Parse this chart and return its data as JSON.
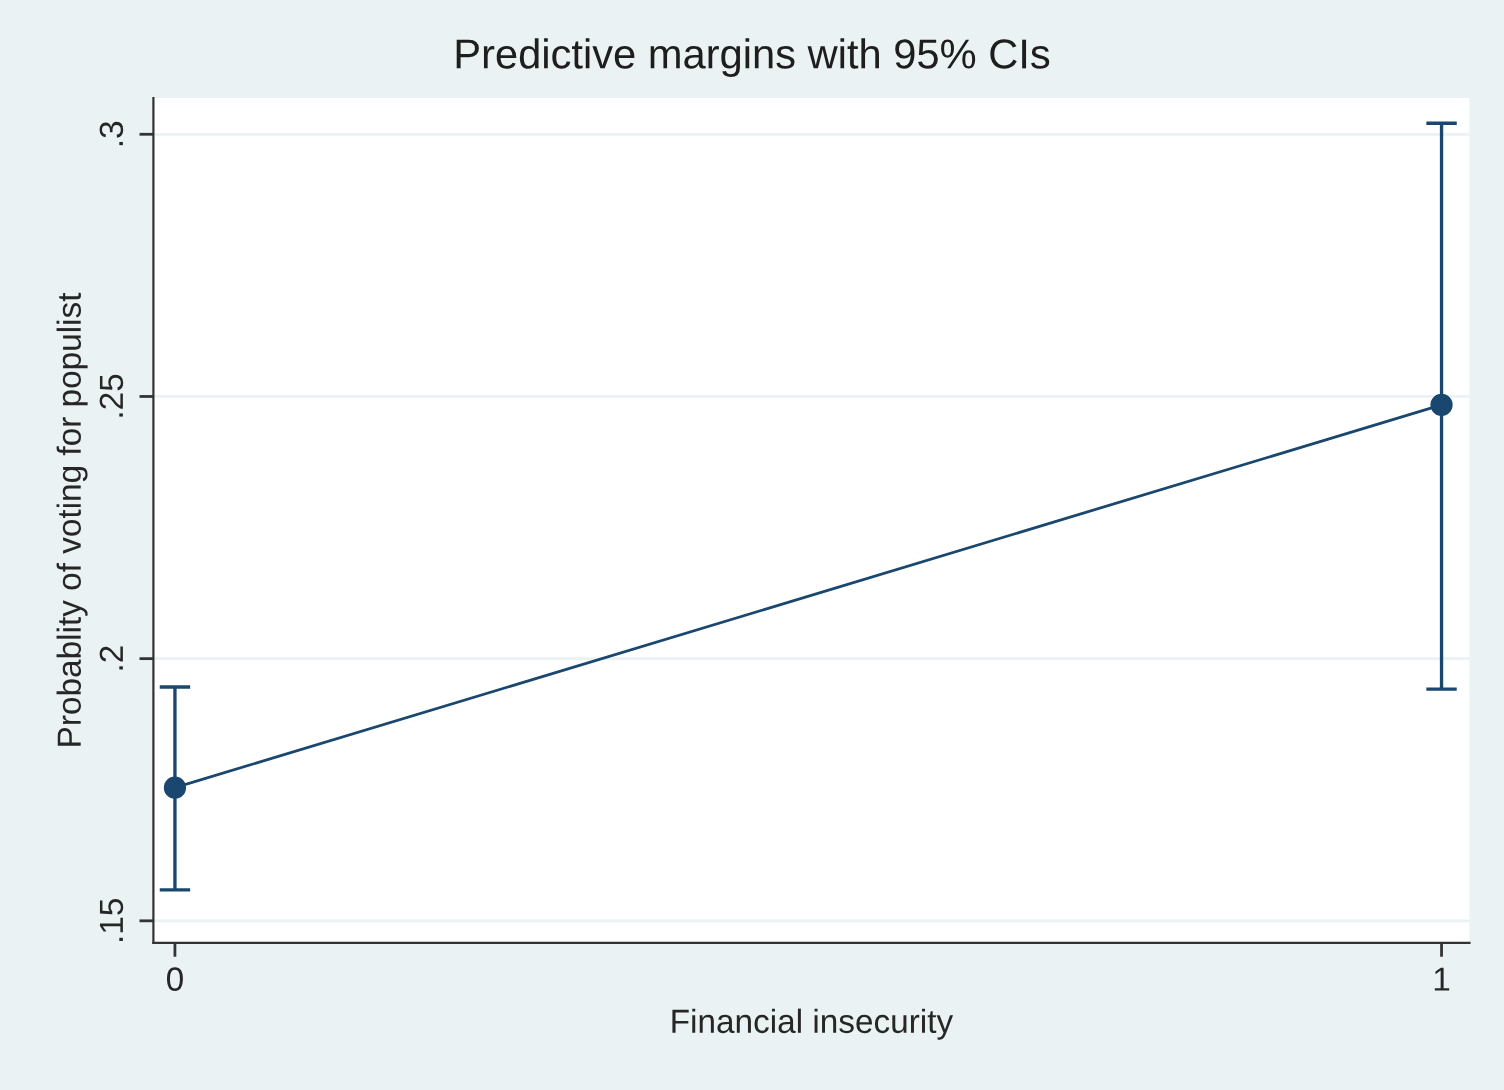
{
  "chart_data": {
    "type": "line",
    "title": "Predictive margins with 95% CIs",
    "xlabel": "Financial insecurity",
    "ylabel": "Probablity of voting for populist",
    "x": [
      0,
      1
    ],
    "series": [
      {
        "color": "#1a476f",
        "values": [
          0.1754,
          0.2484
        ],
        "errors": [
          [
            0.1559,
            0.1946
          ],
          [
            0.1942,
            0.3021
          ]
        ]
      }
    ],
    "xlim": [
      -0.017,
      1.022
    ],
    "xticks": [
      0,
      1
    ],
    "ylim": [
      0.1458,
      0.3069
    ],
    "yticks": [
      {
        "value": 0.15,
        "label": ".15"
      },
      {
        "value": 0.2,
        "label": ".2"
      },
      {
        "value": 0.25,
        "label": ".25"
      },
      {
        "value": 0.3,
        "label": ".3"
      }
    ],
    "grid": "y",
    "marker": "circle",
    "line_style": "solid"
  }
}
